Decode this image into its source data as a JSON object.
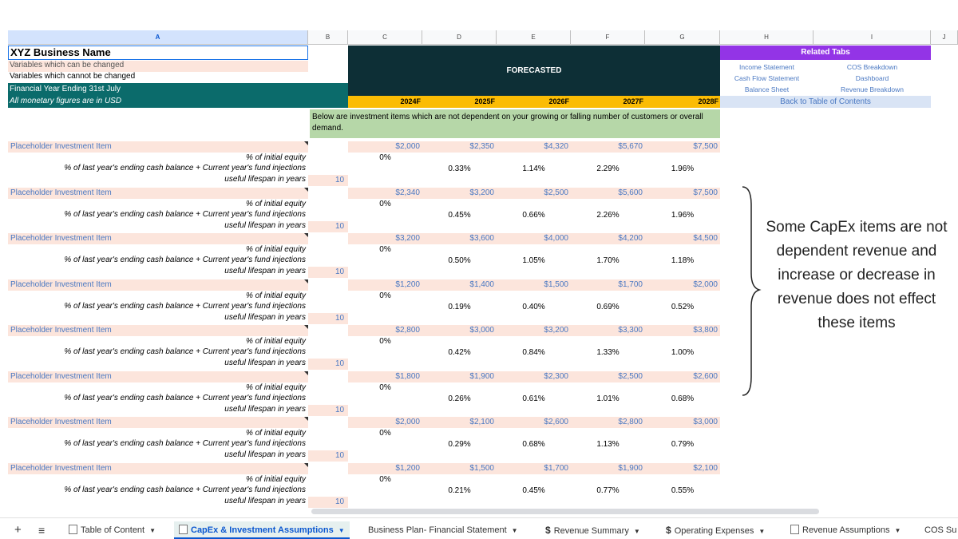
{
  "columns": [
    "A",
    "B",
    "C",
    "D",
    "E",
    "F",
    "G",
    "H",
    "I",
    "J"
  ],
  "header": {
    "business_name": "XYZ Business Name",
    "legend_changeable": "Variables which can be changed",
    "legend_fixed": "Variables which cannot be changed",
    "fy": "Financial Year Ending 31st July",
    "currency": "All monetary figures are in USD",
    "forecasted": "FORECASTED",
    "years": [
      "2024F",
      "2025F",
      "2026F",
      "2027F",
      "2028F"
    ]
  },
  "related": {
    "title": "Related Tabs",
    "links": [
      [
        "Income Statement",
        "COS Breakdown"
      ],
      [
        "Cash Flow Statement",
        "Dashboard"
      ],
      [
        "Balance Sheet",
        "Revenue Breakdown"
      ]
    ],
    "back": "Back to Table of Contents"
  },
  "intro": "Below are investment items which are not dependent on your growing or falling number of customers or overall demand.",
  "labels": {
    "item": "Placeholder Investment Item",
    "equity": "% of initial equity",
    "cash": "% of last year's ending cash balance + Current year's fund injections",
    "life": "useful lifespan in years"
  },
  "items": [
    {
      "amounts": [
        "$2,000",
        "$2,350",
        "$4,320",
        "$5,670",
        "$7,500"
      ],
      "equity": "0%",
      "cash": [
        "0.33%",
        "1.14%",
        "2.29%",
        "1.96%"
      ],
      "life": "10"
    },
    {
      "amounts": [
        "$2,340",
        "$3,200",
        "$2,500",
        "$5,600",
        "$7,500"
      ],
      "equity": "0%",
      "cash": [
        "0.45%",
        "0.66%",
        "2.26%",
        "1.96%"
      ],
      "life": "10"
    },
    {
      "amounts": [
        "$3,200",
        "$3,600",
        "$4,000",
        "$4,200",
        "$4,500"
      ],
      "equity": "0%",
      "cash": [
        "0.50%",
        "1.05%",
        "1.70%",
        "1.18%"
      ],
      "life": "10"
    },
    {
      "amounts": [
        "$1,200",
        "$1,400",
        "$1,500",
        "$1,700",
        "$2,000"
      ],
      "equity": "0%",
      "cash": [
        "0.19%",
        "0.40%",
        "0.69%",
        "0.52%"
      ],
      "life": "10"
    },
    {
      "amounts": [
        "$2,800",
        "$3,000",
        "$3,200",
        "$3,300",
        "$3,800"
      ],
      "equity": "0%",
      "cash": [
        "0.42%",
        "0.84%",
        "1.33%",
        "1.00%"
      ],
      "life": "10"
    },
    {
      "amounts": [
        "$1,800",
        "$1,900",
        "$2,300",
        "$2,500",
        "$2,600"
      ],
      "equity": "0%",
      "cash": [
        "0.26%",
        "0.61%",
        "1.01%",
        "0.68%"
      ],
      "life": "10"
    },
    {
      "amounts": [
        "$2,000",
        "$2,100",
        "$2,600",
        "$2,800",
        "$3,000"
      ],
      "equity": "0%",
      "cash": [
        "0.29%",
        "0.68%",
        "1.13%",
        "0.79%"
      ],
      "life": "10"
    },
    {
      "amounts": [
        "$1,200",
        "$1,500",
        "$1,700",
        "$1,900",
        "$2,100"
      ],
      "equity": "0%",
      "cash": [
        "0.21%",
        "0.45%",
        "0.77%",
        "0.55%"
      ],
      "life": "10"
    }
  ],
  "annotation": "Some CapEx items are not dependent revenue and increase or decrease in revenue does not effect these items",
  "tabs": [
    {
      "label": "Table of Content",
      "icon": "sheet-icon"
    },
    {
      "label": "CapEx & Investment Assumptions",
      "icon": "sheet-icon",
      "active": true
    },
    {
      "label": "Business Plan- Financial Statement",
      "icon": ""
    },
    {
      "label": "Revenue Summary",
      "icon": "dollar-icon"
    },
    {
      "label": "Operating Expenses",
      "icon": "dollar-icon"
    },
    {
      "label": "Revenue Assumptions",
      "icon": "sheet-icon"
    },
    {
      "label": "COS Su",
      "icon": ""
    }
  ],
  "tab_controls": {
    "add": "+",
    "menu": "≡"
  },
  "colors": {
    "peach": "#fce5dc",
    "teal": "#0b6b6b",
    "dark": "#0d2f36",
    "amber": "#fbbc04",
    "purple": "#9334e6",
    "green": "#b6d7a8"
  }
}
